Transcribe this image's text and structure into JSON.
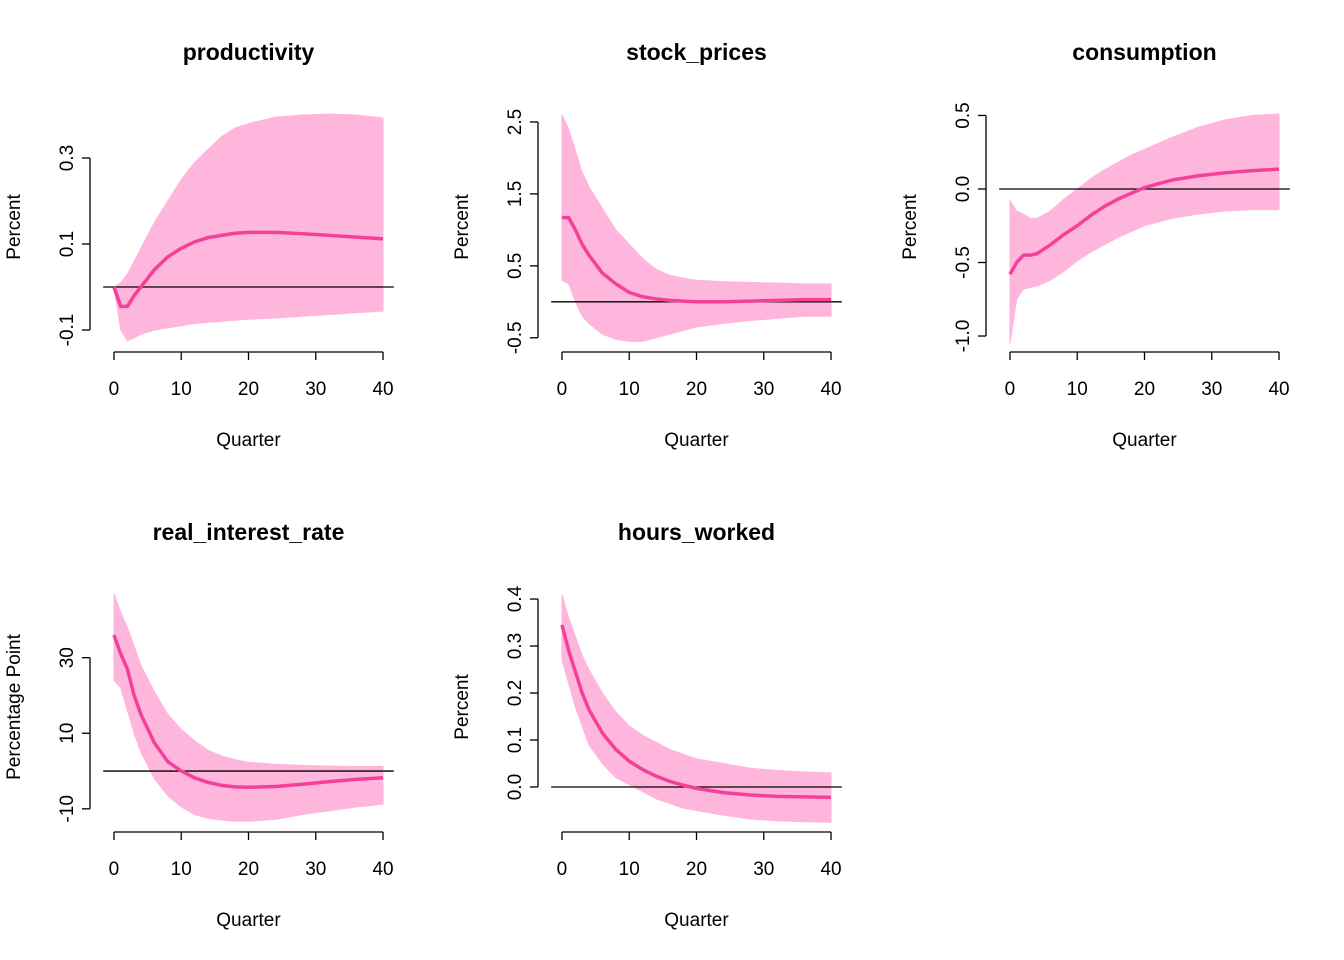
{
  "chart_data": [
    {
      "type": "line",
      "title": "productivity",
      "x_label": "Quarter",
      "y_label": "Percent",
      "x": [
        0,
        1,
        2,
        3,
        4,
        6,
        8,
        10,
        12,
        14,
        16,
        18,
        20,
        24,
        28,
        32,
        36,
        40
      ],
      "values": [
        0,
        -0.045,
        -0.045,
        -0.02,
        0.0,
        0.04,
        0.07,
        0.09,
        0.105,
        0.115,
        0.12,
        0.125,
        0.127,
        0.127,
        0.124,
        0.12,
        0.116,
        0.112
      ],
      "upper": [
        0,
        0.01,
        0.03,
        0.06,
        0.09,
        0.15,
        0.2,
        0.25,
        0.29,
        0.32,
        0.35,
        0.37,
        0.38,
        0.395,
        0.4,
        0.402,
        0.4,
        0.393
      ],
      "lower": [
        0,
        -0.1,
        -0.125,
        -0.118,
        -0.11,
        -0.1,
        -0.095,
        -0.09,
        -0.085,
        -0.082,
        -0.08,
        -0.077,
        -0.075,
        -0.072,
        -0.068,
        -0.064,
        -0.06,
        -0.056
      ],
      "color": "#f43f9b",
      "band_color": "#ffb6dc",
      "hline": 0,
      "xlim": [
        -1.6,
        41.6
      ],
      "xticks": [
        0,
        10,
        20,
        30,
        40
      ],
      "ylim": [
        -0.1465,
        0.4256
      ],
      "yticks": [
        -0.1,
        0.1,
        0.3
      ]
    },
    {
      "type": "line",
      "title": "stock_prices",
      "x_label": "Quarter",
      "y_label": "Percent",
      "x": [
        0,
        1,
        2,
        3,
        4,
        6,
        8,
        10,
        12,
        14,
        16,
        18,
        20,
        24,
        28,
        32,
        36,
        40
      ],
      "values": [
        1.17,
        1.17,
        1.0,
        0.8,
        0.65,
        0.4,
        0.25,
        0.13,
        0.07,
        0.04,
        0.02,
        0.01,
        0.0,
        0.0,
        0.01,
        0.02,
        0.03,
        0.03
      ],
      "upper": [
        2.6,
        2.4,
        2.1,
        1.8,
        1.6,
        1.3,
        1.0,
        0.8,
        0.6,
        0.45,
        0.37,
        0.33,
        0.3,
        0.28,
        0.27,
        0.26,
        0.25,
        0.25
      ],
      "lower": [
        0.3,
        0.25,
        0.0,
        -0.2,
        -0.3,
        -0.45,
        -0.52,
        -0.55,
        -0.55,
        -0.5,
        -0.45,
        -0.4,
        -0.35,
        -0.3,
        -0.26,
        -0.23,
        -0.2,
        -0.2
      ],
      "color": "#f43f9b",
      "band_color": "#ffb6dc",
      "hline": 0,
      "xlim": [
        -1.6,
        41.6
      ],
      "xticks": [
        0,
        10,
        20,
        30,
        40
      ],
      "ylim": [
        -0.67,
        2.75
      ],
      "yticks": [
        -0.5,
        0.5,
        1.5,
        2.5
      ]
    },
    {
      "type": "line",
      "title": "consumption",
      "x_label": "Quarter",
      "y_label": "Percent",
      "x": [
        0,
        1,
        2,
        3,
        4,
        6,
        8,
        10,
        12,
        14,
        16,
        18,
        20,
        24,
        28,
        32,
        36,
        40
      ],
      "values": [
        -0.58,
        -0.5,
        -0.45,
        -0.45,
        -0.44,
        -0.38,
        -0.31,
        -0.25,
        -0.18,
        -0.12,
        -0.07,
        -0.03,
        0.01,
        0.06,
        0.09,
        0.11,
        0.125,
        0.135
      ],
      "upper": [
        -0.08,
        -0.15,
        -0.17,
        -0.2,
        -0.2,
        -0.15,
        -0.07,
        0.0,
        0.07,
        0.13,
        0.18,
        0.23,
        0.27,
        0.35,
        0.42,
        0.47,
        0.5,
        0.51
      ],
      "lower": [
        -1.05,
        -0.75,
        -0.68,
        -0.67,
        -0.66,
        -0.62,
        -0.56,
        -0.49,
        -0.43,
        -0.38,
        -0.33,
        -0.29,
        -0.25,
        -0.2,
        -0.17,
        -0.15,
        -0.14,
        -0.14
      ],
      "color": "#f43f9b",
      "band_color": "#ffb6dc",
      "hline": 0,
      "xlim": [
        -1.6,
        41.6
      ],
      "xticks": [
        0,
        10,
        20,
        30,
        40
      ],
      "ylim": [
        -1.095,
        0.578
      ],
      "yticks": [
        {
          "value": -1,
          "label": "-1.0"
        },
        -0.5,
        {
          "value": 0,
          "label": "0.0"
        },
        0.5
      ]
    },
    {
      "type": "line",
      "title": "real_interest_rate",
      "x_label": "Quarter",
      "y_label": "Percentage Point",
      "x": [
        0,
        1,
        2,
        3,
        4,
        6,
        8,
        10,
        12,
        14,
        16,
        18,
        20,
        24,
        28,
        32,
        36,
        40
      ],
      "values": [
        36,
        31,
        27,
        20,
        15,
        7.5,
        2.5,
        0,
        -1.8,
        -3,
        -3.8,
        -4.2,
        -4.3,
        -4.1,
        -3.5,
        -2.8,
        -2.2,
        -1.8
      ],
      "upper": [
        47,
        42,
        38,
        33,
        28,
        21,
        15,
        11,
        8,
        5.5,
        4,
        3,
        2.3,
        1.8,
        1.5,
        1.3,
        1.2,
        1.2
      ],
      "lower": [
        24,
        22,
        16,
        10,
        5,
        -2,
        -6.5,
        -9.5,
        -11.5,
        -12.5,
        -13,
        -13.3,
        -13.3,
        -12.8,
        -11.5,
        -10.5,
        -9.5,
        -8.8
      ],
      "color": "#f43f9b",
      "band_color": "#ffb6dc",
      "hline": 0,
      "xlim": [
        -1.6,
        41.6
      ],
      "xticks": [
        0,
        10,
        20,
        30,
        40
      ],
      "ylim": [
        -15.6,
        49.5
      ],
      "yticks": [
        -10,
        10,
        30
      ]
    },
    {
      "type": "line",
      "title": "hours_worked",
      "x_label": "Quarter",
      "y_label": "Percent",
      "x": [
        0,
        1,
        2,
        3,
        4,
        6,
        8,
        10,
        12,
        14,
        16,
        18,
        20,
        24,
        28,
        32,
        36,
        40
      ],
      "values": [
        0.345,
        0.29,
        0.245,
        0.2,
        0.165,
        0.115,
        0.08,
        0.055,
        0.037,
        0.023,
        0.012,
        0.004,
        -0.003,
        -0.012,
        -0.017,
        -0.02,
        -0.021,
        -0.022
      ],
      "upper": [
        0.41,
        0.36,
        0.32,
        0.28,
        0.25,
        0.2,
        0.16,
        0.13,
        0.11,
        0.095,
        0.08,
        0.07,
        0.06,
        0.05,
        0.04,
        0.035,
        0.032,
        0.03
      ],
      "lower": [
        0.27,
        0.22,
        0.17,
        0.13,
        0.09,
        0.05,
        0.02,
        0.005,
        -0.01,
        -0.025,
        -0.035,
        -0.045,
        -0.05,
        -0.06,
        -0.068,
        -0.072,
        -0.074,
        -0.075
      ],
      "color": "#f43f9b",
      "band_color": "#ffb6dc",
      "hline": 0,
      "xlim": [
        -1.6,
        41.6
      ],
      "xticks": [
        0,
        10,
        20,
        30,
        40
      ],
      "ylim": [
        -0.0915,
        0.432
      ],
      "yticks": [
        {
          "value": 0,
          "label": "0.0"
        },
        0.1,
        0.2,
        0.3,
        0.4
      ]
    }
  ]
}
